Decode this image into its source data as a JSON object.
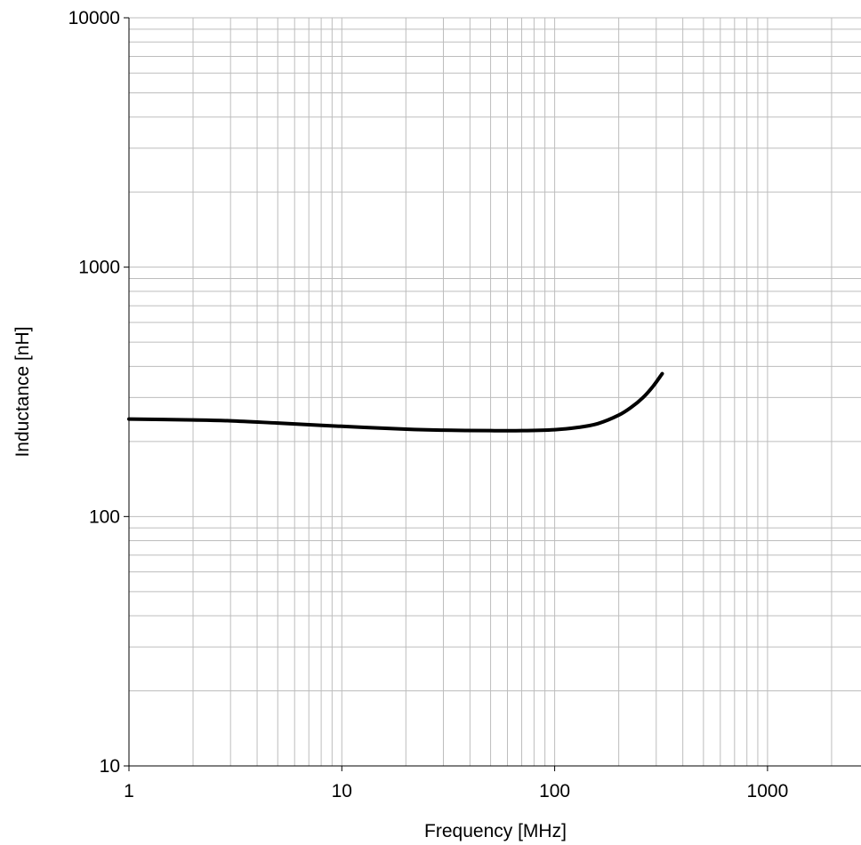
{
  "chart_data": {
    "type": "line",
    "title": "",
    "xlabel": "Frequency [MHz]",
    "ylabel": "Inductance [nH]",
    "x_scale": "log",
    "y_scale": "log",
    "xlim": [
      1,
      3000
    ],
    "ylim": [
      10,
      10000
    ],
    "x_ticks": [
      1,
      10,
      100,
      1000
    ],
    "x_tick_labels": [
      "1",
      "10",
      "100",
      "1000"
    ],
    "y_ticks": [
      10,
      100,
      1000,
      10000
    ],
    "y_tick_labels": [
      "10",
      "100",
      "1000",
      "10000"
    ],
    "grid": true,
    "grid_minor": true,
    "legend": "none",
    "series": [
      {
        "color": "#000000",
        "x": [
          1,
          2,
          3,
          5,
          10,
          20,
          30,
          50,
          70,
          100,
          130,
          160,
          200,
          230,
          260,
          290,
          320
        ],
        "y": [
          246,
          244,
          242,
          237,
          230,
          224,
          222,
          221,
          221,
          223,
          228,
          236,
          255,
          275,
          300,
          333,
          374
        ]
      }
    ]
  },
  "colors": {
    "grid": "#bdbdbd",
    "axis": "#000000",
    "line": "#000000"
  }
}
